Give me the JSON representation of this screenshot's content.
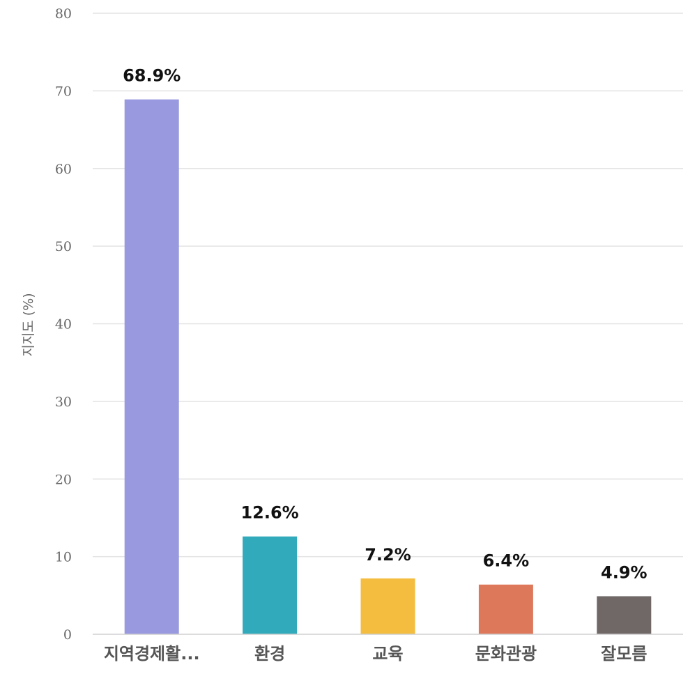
{
  "chart_data": {
    "type": "bar",
    "title": "",
    "xlabel": "",
    "ylabel": "지지도 (%)",
    "ylim": [
      0,
      80
    ],
    "yticks": [
      0,
      10,
      20,
      30,
      40,
      50,
      60,
      70,
      80
    ],
    "grid": true,
    "legend": "none",
    "categories": [
      "지역경제활...",
      "환경",
      "교육",
      "문화관광",
      "잘모름"
    ],
    "values": [
      68.9,
      12.6,
      7.2,
      6.4,
      4.9
    ],
    "data_labels": [
      "68.9%",
      "12.6%",
      "7.2%",
      "6.4%",
      "4.9%"
    ],
    "colors": [
      "#9999df",
      "#31aabb",
      "#f4bd40",
      "#dd785a",
      "#6f6867"
    ]
  }
}
